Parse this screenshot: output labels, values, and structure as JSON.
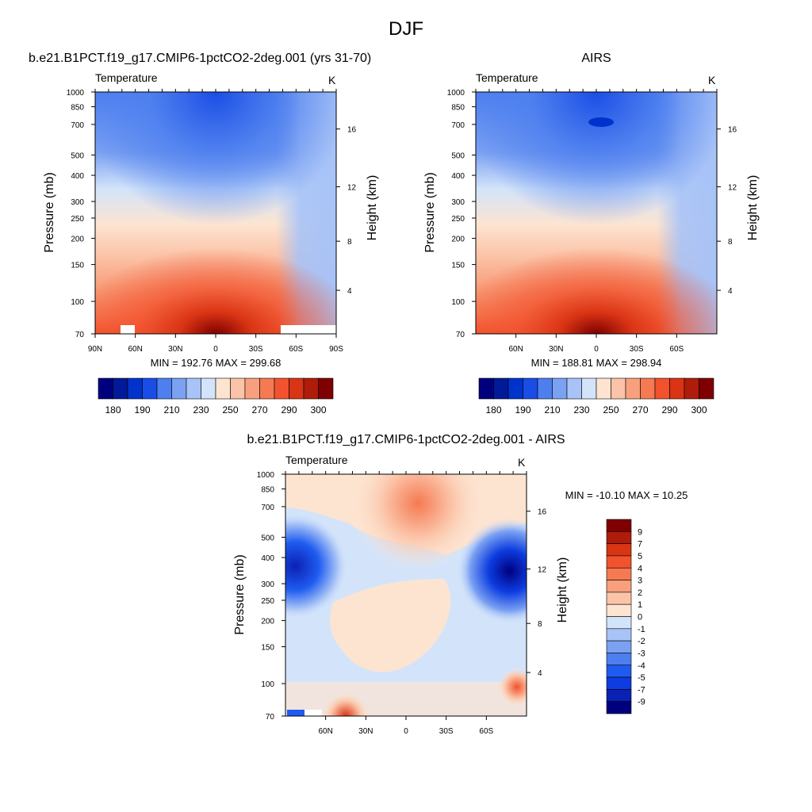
{
  "figure_title": "DJF",
  "colors": {
    "temp_levels": [
      "#00007f",
      "#001a99",
      "#0033cc",
      "#1a4de6",
      "#4d7fef",
      "#7ba1f2",
      "#a8c3f7",
      "#d3e4fa",
      "#fde4d1",
      "#fbc3a7",
      "#f8a07d",
      "#f57a52",
      "#f2522e",
      "#d93414",
      "#b01c0a",
      "#7f0000"
    ],
    "diff_levels": [
      "#00007f",
      "#0a21b3",
      "#0d3de0",
      "#1f5bf0",
      "#4d7fef",
      "#7ba1f2",
      "#a8c3f7",
      "#d3e4fa",
      "#fde4d1",
      "#fbc3a7",
      "#f8a07d",
      "#f57a52",
      "#f2522e",
      "#d93414",
      "#b01c0a",
      "#7f0000"
    ]
  },
  "chart_data": [
    {
      "type": "heatmap",
      "title": "b.e21.B1PCT.f19_g17.CMIP6-1pctCO2-2deg.001 (yrs 31-70)",
      "subtitle_left": "Temperature",
      "units": "K",
      "ylabel": "Pressure (mb)",
      "ylabel_right": "Height (km)",
      "x_ticks": [
        "90N",
        "60N",
        "30N",
        "0",
        "30S",
        "60S",
        "90S"
      ],
      "x_tick_values": [
        90,
        60,
        30,
        0,
        -30,
        -60,
        -90
      ],
      "xlim": [
        90,
        -90
      ],
      "y_ticks": [
        "70",
        "100",
        "150",
        "200",
        "250",
        "300",
        "400",
        "500",
        "700",
        "850",
        "1000"
      ],
      "y_tick_values": [
        70,
        100,
        150,
        200,
        250,
        300,
        400,
        500,
        700,
        850,
        1000
      ],
      "ylim": [
        1000,
        70
      ],
      "y_scale": "log",
      "right_ticks": [
        "16",
        "12",
        "8",
        "4"
      ],
      "min_max_text": "MIN = 192.76  MAX = 299.68",
      "min": 192.76,
      "max": 299.68,
      "colorbar_labels": [
        "180",
        "190",
        "210",
        "230",
        "250",
        "270",
        "290",
        "300"
      ],
      "colorbar_orientation": "horizontal"
    },
    {
      "type": "heatmap",
      "title": "AIRS",
      "subtitle_left": "Temperature",
      "units": "K",
      "ylabel": "Pressure (mb)",
      "ylabel_right": "Height (km)",
      "x_ticks": [
        "60N",
        "30N",
        "0",
        "30S",
        "60S"
      ],
      "x_tick_values": [
        60,
        30,
        0,
        -30,
        -60
      ],
      "xlim": [
        90,
        -90
      ],
      "y_ticks": [
        "70",
        "100",
        "150",
        "200",
        "250",
        "300",
        "400",
        "500",
        "700",
        "850",
        "1000"
      ],
      "y_tick_values": [
        70,
        100,
        150,
        200,
        250,
        300,
        400,
        500,
        700,
        850,
        1000
      ],
      "ylim": [
        1000,
        70
      ],
      "y_scale": "log",
      "right_ticks": [
        "16",
        "12",
        "8",
        "4"
      ],
      "min_max_text": "MIN = 188.81  MAX = 298.94",
      "min": 188.81,
      "max": 298.94,
      "colorbar_labels": [
        "180",
        "190",
        "210",
        "230",
        "250",
        "270",
        "290",
        "300"
      ],
      "colorbar_orientation": "horizontal"
    },
    {
      "type": "heatmap",
      "title": "b.e21.B1PCT.f19_g17.CMIP6-1pctCO2-2deg.001 - AIRS",
      "subtitle_left": "Temperature",
      "units": "K",
      "ylabel": "Pressure (mb)",
      "ylabel_right": "Height (km)",
      "x_ticks": [
        "60N",
        "30N",
        "0",
        "30S",
        "60S"
      ],
      "x_tick_values": [
        60,
        30,
        0,
        -30,
        -60
      ],
      "xlim": [
        90,
        -90
      ],
      "y_ticks": [
        "70",
        "100",
        "150",
        "200",
        "250",
        "300",
        "400",
        "500",
        "700",
        "850",
        "1000"
      ],
      "y_tick_values": [
        70,
        100,
        150,
        200,
        250,
        300,
        400,
        500,
        700,
        850,
        1000
      ],
      "ylim": [
        1000,
        70
      ],
      "y_scale": "log",
      "right_ticks": [
        "16",
        "12",
        "8",
        "4"
      ],
      "min_max_text": "MIN = -10.10  MAX =  10.25",
      "min": -10.1,
      "max": 10.25,
      "colorbar_labels": [
        "9",
        "7",
        "5",
        "4",
        "3",
        "2",
        "1",
        "0",
        "-1",
        "-2",
        "-3",
        "-4",
        "-5",
        "-7",
        "-9"
      ],
      "colorbar_orientation": "vertical"
    }
  ]
}
